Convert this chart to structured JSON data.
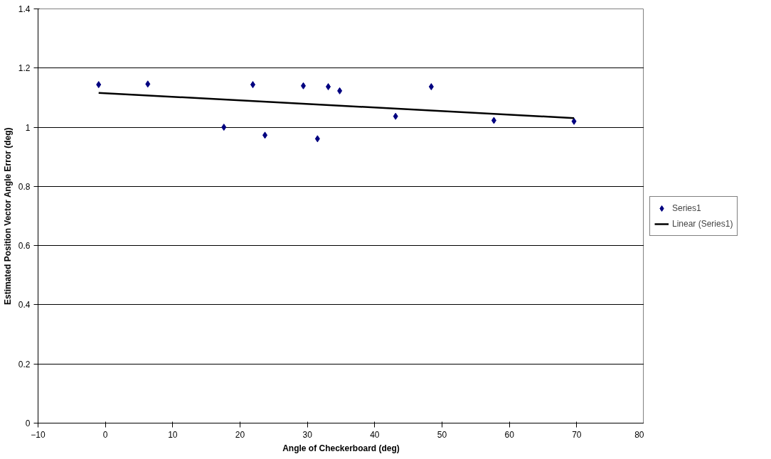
{
  "chart_data": {
    "type": "scatter",
    "xlabel": "Angle of Checkerboard (deg)",
    "ylabel": "Estimated Position Vector Angle Error (deg)",
    "xlim": [
      -10,
      80
    ],
    "xticks": [
      -10,
      0,
      10,
      20,
      30,
      40,
      50,
      60,
      70,
      80
    ],
    "ylim": [
      0,
      1.4
    ],
    "yticks": [
      0,
      0.2,
      0.4,
      0.6,
      0.8,
      1,
      1.2,
      1.4
    ],
    "grid": "y",
    "legend": "right",
    "series": [
      {
        "name": "Series1",
        "marker": "diamond",
        "color": "#000080",
        "x": [
          -1,
          6.3,
          17.6,
          21.9,
          23.7,
          29.4,
          31.5,
          33.1,
          34.8,
          43.1,
          48.4,
          57.7,
          69.6
        ],
        "values": [
          1.144,
          1.146,
          1.0,
          1.144,
          0.973,
          1.14,
          0.961,
          1.137,
          1.123,
          1.037,
          1.137,
          1.023,
          1.02
        ]
      },
      {
        "name": "Linear (Series1)",
        "type": "line",
        "color": "#000000",
        "line_style": "solid",
        "x": [
          -1,
          69.6
        ],
        "values": [
          1.116,
          1.031
        ]
      }
    ]
  }
}
